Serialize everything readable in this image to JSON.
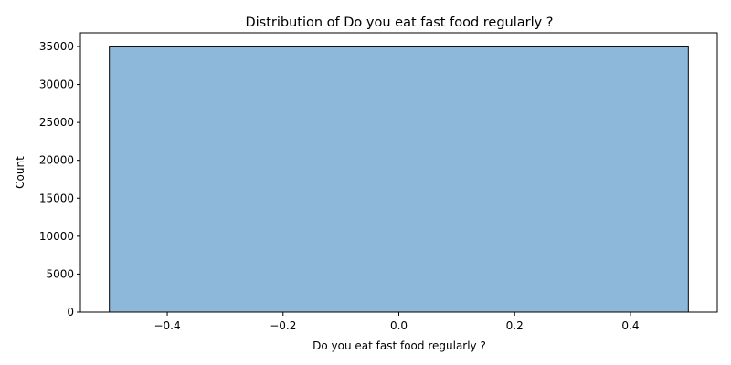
{
  "chart_data": {
    "type": "bar",
    "title": "Distribution of Do you eat fast food regularly ?",
    "xlabel": "Do you eat fast food regularly ?",
    "ylabel": "Count",
    "bars": [
      {
        "x_start": -0.5,
        "x_end": 0.5,
        "value": 35050
      }
    ],
    "xlim": [
      -0.55,
      0.55
    ],
    "ylim": [
      0,
      36800
    ],
    "x_ticks": [
      -0.4,
      -0.2,
      0.0,
      0.2,
      0.4
    ],
    "x_tick_labels": [
      "−0.4",
      "−0.2",
      "0.0",
      "0.2",
      "0.4"
    ],
    "y_ticks": [
      0,
      5000,
      10000,
      15000,
      20000,
      25000,
      30000,
      35000
    ],
    "y_tick_labels": [
      "0",
      "5000",
      "10000",
      "15000",
      "20000",
      "25000",
      "30000",
      "35000"
    ],
    "bar_color": "#8db8d9",
    "bar_edge_color": "#000000",
    "grid": false,
    "legend": "none"
  }
}
